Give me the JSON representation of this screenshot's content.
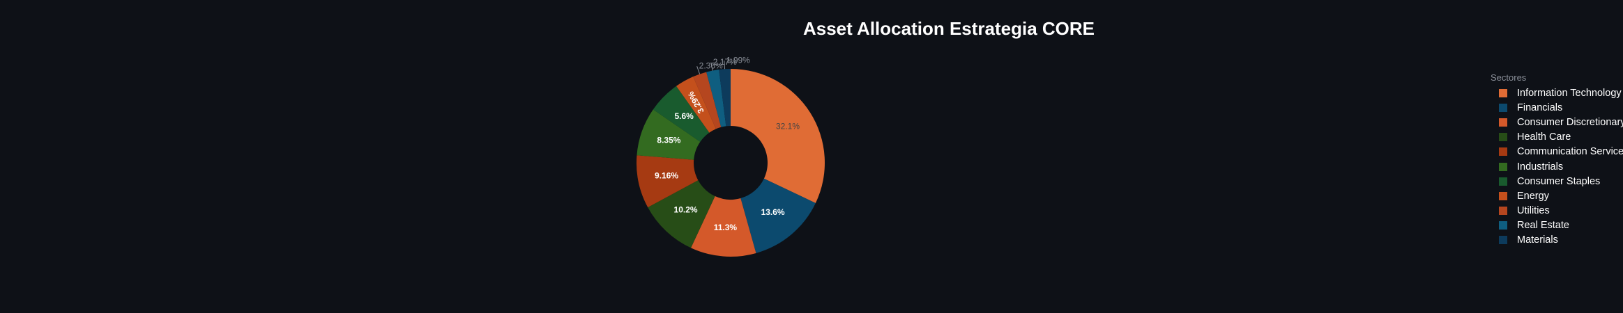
{
  "chart_data": {
    "type": "pie",
    "title": "Asset Allocation Estrategia CORE",
    "legend_title": "Sectores",
    "legend_position": "right",
    "hole": true,
    "slices": [
      {
        "label": "Information Technology",
        "value": 32.1,
        "text": "32.1%",
        "color": "#e06c35"
      },
      {
        "label": "Financials",
        "value": 13.6,
        "text": "13.6%",
        "color": "#0c4a6e"
      },
      {
        "label": "Consumer Discretionary",
        "value": 11.3,
        "text": "11.3%",
        "color": "#d4592a"
      },
      {
        "label": "Health Care",
        "value": 10.2,
        "text": "10.2%",
        "color": "#274d17"
      },
      {
        "label": "Communication Services",
        "value": 9.16,
        "text": "9.16%",
        "color": "#a63a12"
      },
      {
        "label": "Industrials",
        "value": 8.35,
        "text": "8.35%",
        "color": "#336b20"
      },
      {
        "label": "Consumer Staples",
        "value": 5.6,
        "text": "5.6%",
        "color": "#195b2e"
      },
      {
        "label": "Energy",
        "value": 3.29,
        "text": "3.29%",
        "color": "#c4501c"
      },
      {
        "label": "Utilities",
        "value": 2.36,
        "text": "2.36%",
        "color": "#b5461f"
      },
      {
        "label": "Real Estate",
        "value": 2.17,
        "text": "2.17%",
        "color": "#0f5e80"
      },
      {
        "label": "Materials",
        "value": 1.99,
        "text": "1.99%",
        "color": "#0d3b5c"
      }
    ]
  }
}
